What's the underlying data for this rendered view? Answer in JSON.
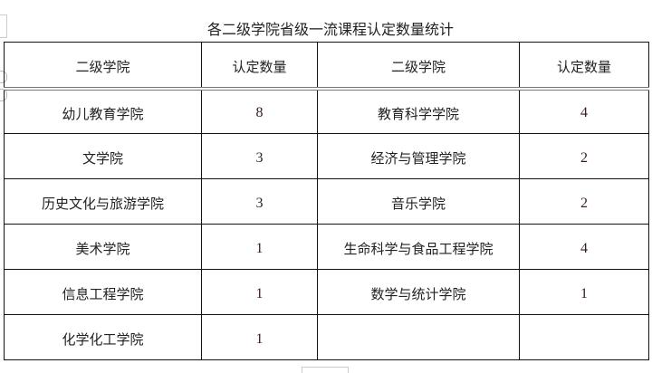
{
  "title": "各二级学院省级一流课程认定数量统计",
  "headers": [
    "二级学院",
    "认定数量",
    "二级学院",
    "认定数量"
  ],
  "rows": [
    [
      "幼儿教育学院",
      "8",
      "教育科学学院",
      "4"
    ],
    [
      "文学院",
      "3",
      "经济与管理学院",
      "2"
    ],
    [
      "历史文化与旅游学院",
      "3",
      "音乐学院",
      "2"
    ],
    [
      "美术学院",
      "1",
      "生命科学与食品工程学院",
      "4"
    ],
    [
      "信息工程学院",
      "1",
      "数学与统计学院",
      "1"
    ],
    [
      "化学化工学院",
      "1",
      "",
      ""
    ]
  ]
}
